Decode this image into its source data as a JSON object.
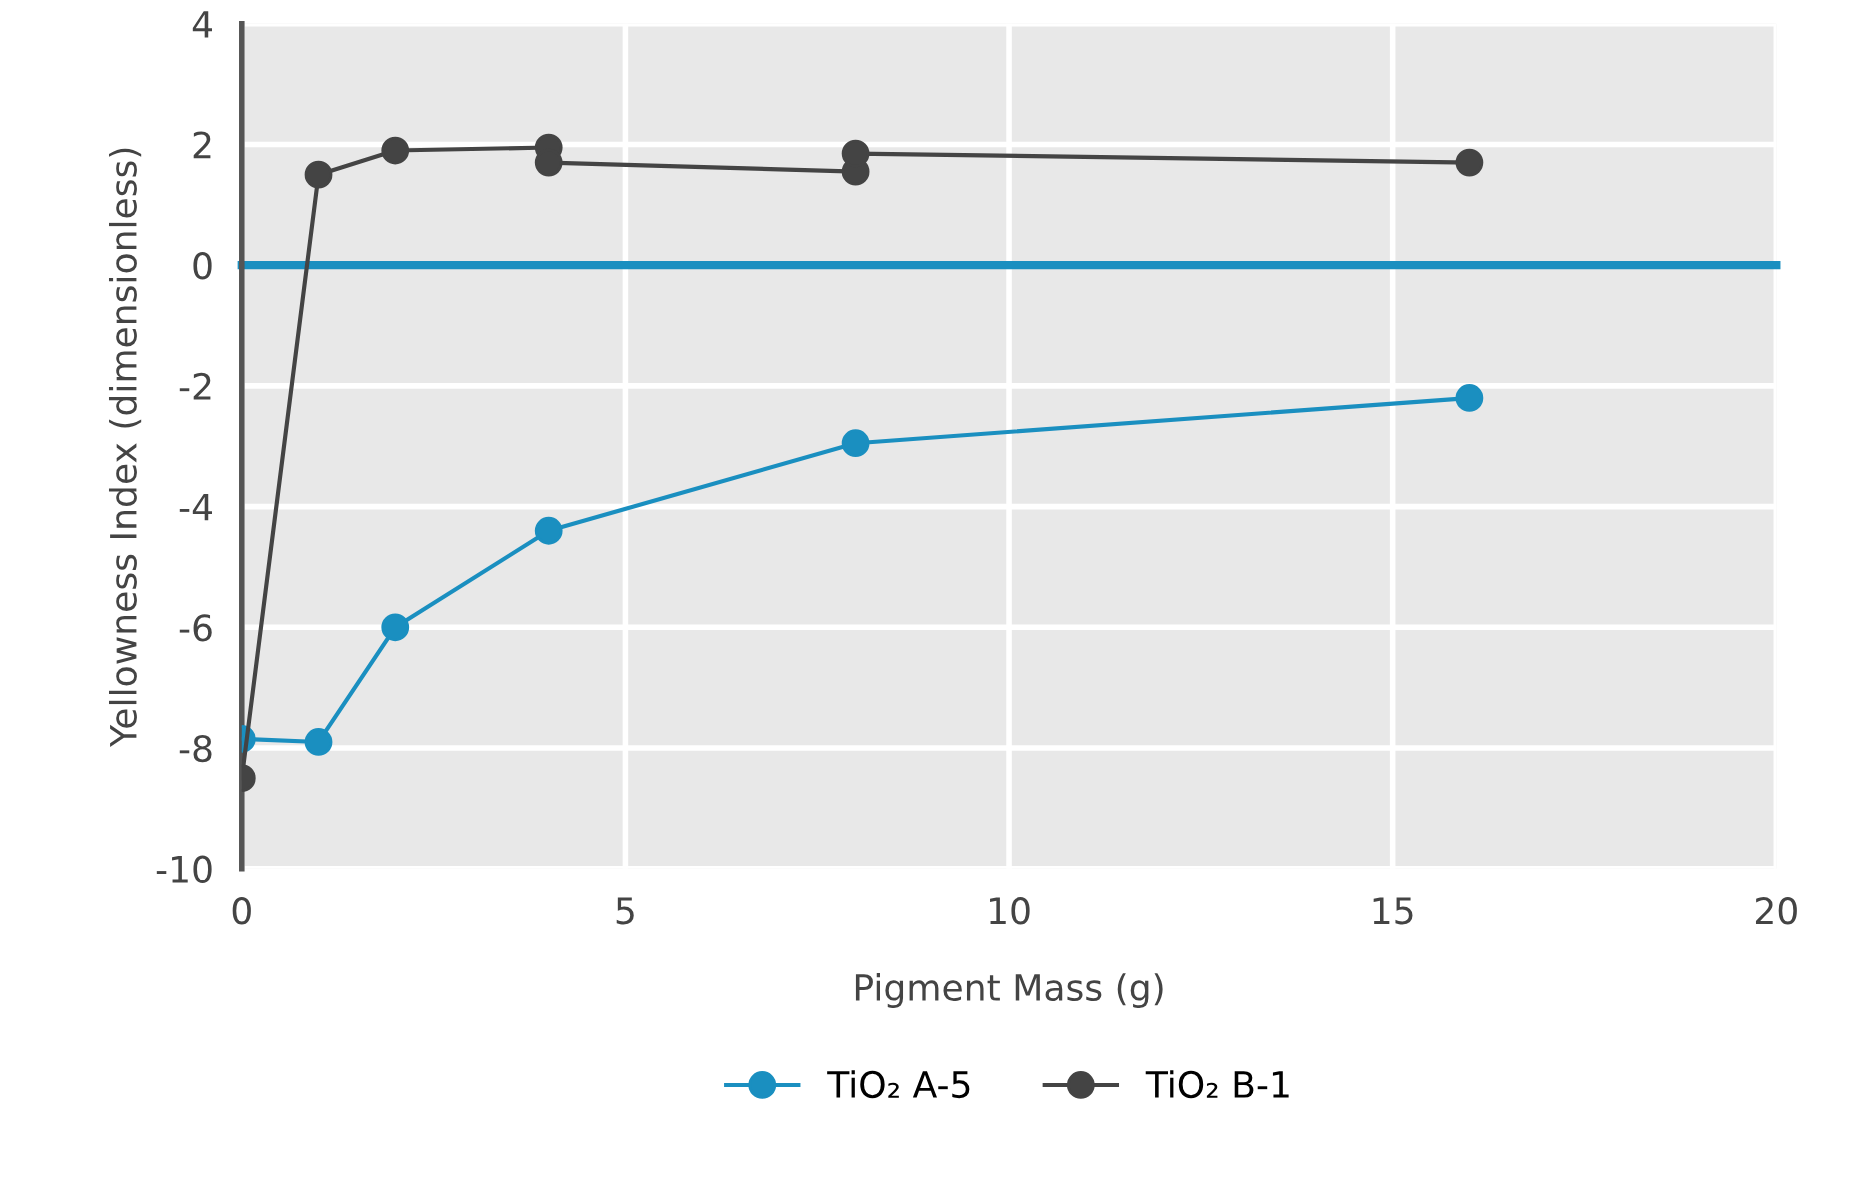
{
  "chart_data": {
    "type": "line",
    "xlabel": "Pigment Mass (g)",
    "ylabel": "Yellowness Index (dimensionless)",
    "series": [
      {
        "name": "TiO₂ A-5",
        "color": "#1a8fc0",
        "x": [
          0,
          1,
          2,
          4,
          8,
          16
        ],
        "values": [
          -7.85,
          -7.9,
          -6.0,
          -4.4,
          -2.95,
          -2.2
        ]
      },
      {
        "name": "TiO₂ B-1",
        "color": "#444444",
        "x": [
          0,
          1,
          2,
          4,
          4,
          8,
          8,
          16
        ],
        "values": [
          -8.5,
          1.5,
          1.9,
          1.95,
          1.7,
          1.55,
          1.85,
          1.7
        ]
      }
    ],
    "xlim": [
      0,
      20
    ],
    "xticks": [
      0,
      5,
      10,
      15,
      20
    ],
    "ylim": [
      -10,
      4
    ],
    "yticks": [
      -10,
      -8,
      -6,
      -4,
      -2,
      0,
      2,
      4
    ],
    "ref_lines": [
      {
        "axis": "y",
        "value": 0,
        "color": "#1a8fc0"
      }
    ],
    "grid": true,
    "legend": "bottom",
    "marker": "circle",
    "line_style": "solid"
  }
}
